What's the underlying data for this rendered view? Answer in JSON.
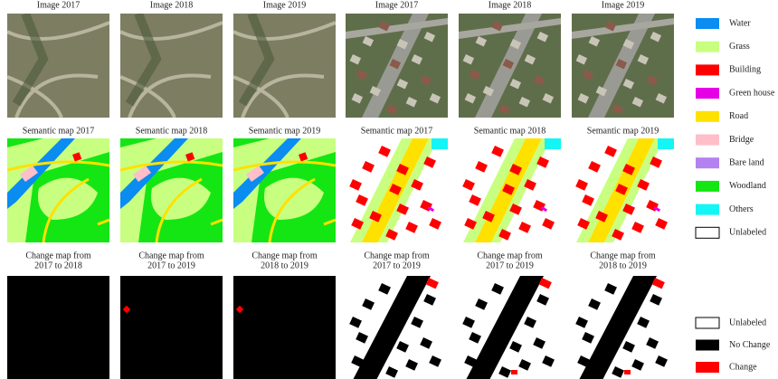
{
  "figure": {
    "rows": [
      {
        "titles": [
          "Image 2017",
          "Image 2018",
          "Image 2019",
          "Image 2017",
          "Image 2018",
          "Image 2019"
        ]
      },
      {
        "titles": [
          "Semantic map 2017",
          "Semantic map 2018",
          "Semantic map 2019",
          "Semantic map 2017",
          "Semantic map 2018",
          "Semantic map 2019"
        ]
      },
      {
        "titles": [
          [
            "Change map from",
            "2017 to 2018"
          ],
          [
            "Change map from",
            "2017 to 2019"
          ],
          [
            "Change map from",
            "2018 to 2019"
          ],
          [
            "Change map from",
            "2017 to 2019"
          ],
          [
            "Change map from",
            "2017 to 2019"
          ],
          [
            "Change map from",
            "2018 to 2019"
          ]
        ]
      }
    ],
    "legend_semantic": [
      {
        "label": "Water",
        "color": "#0a8cf0"
      },
      {
        "label": "Grass",
        "color": "#c8ff80"
      },
      {
        "label": "Building",
        "color": "#ff0000"
      },
      {
        "label": "Green house",
        "color": "#e600e6"
      },
      {
        "label": "Road",
        "color": "#ffe100"
      },
      {
        "label": "Bridge",
        "color": "#ffbec8"
      },
      {
        "label": "Bare land",
        "color": "#b482f0"
      },
      {
        "label": "Woodland",
        "color": "#14e614"
      },
      {
        "label": "Others",
        "color": "#14f5f5"
      },
      {
        "label": "Unlabeled",
        "color": "#ffffff"
      }
    ],
    "legend_change": [
      {
        "label": "Unlabeled",
        "color": "#ffffff"
      },
      {
        "label": "No Change",
        "color": "#000000"
      },
      {
        "label": "Change",
        "color": "#ff0000"
      }
    ]
  }
}
